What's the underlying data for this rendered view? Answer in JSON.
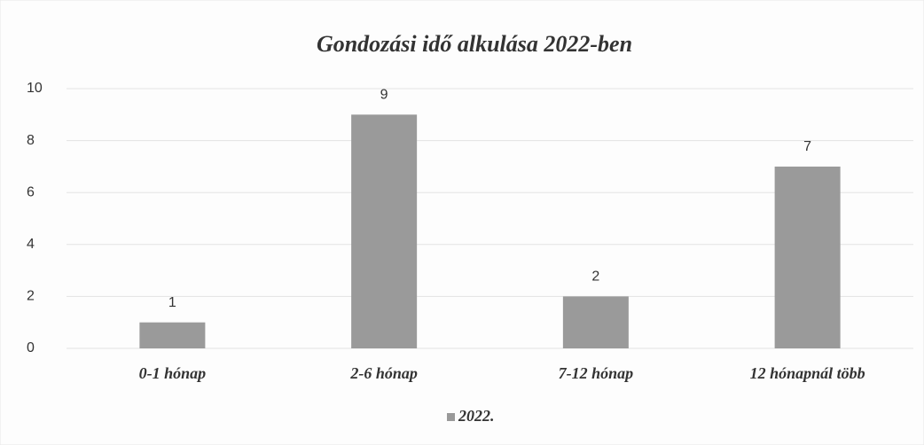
{
  "chart_data": {
    "type": "bar",
    "title": "Gondozási idő alkulása 2022-ben",
    "categories": [
      "0-1 hónap",
      "2-6 hónap",
      "7-12 hónap",
      "12 hónapnál több"
    ],
    "series": [
      {
        "name": "2022.",
        "color": "#9a9a9a",
        "values": [
          1,
          9,
          2,
          7
        ]
      }
    ],
    "ylim": [
      0,
      10
    ],
    "yticks": [
      0,
      2,
      4,
      6,
      8,
      10
    ],
    "grid": true,
    "legend": "bottom"
  }
}
